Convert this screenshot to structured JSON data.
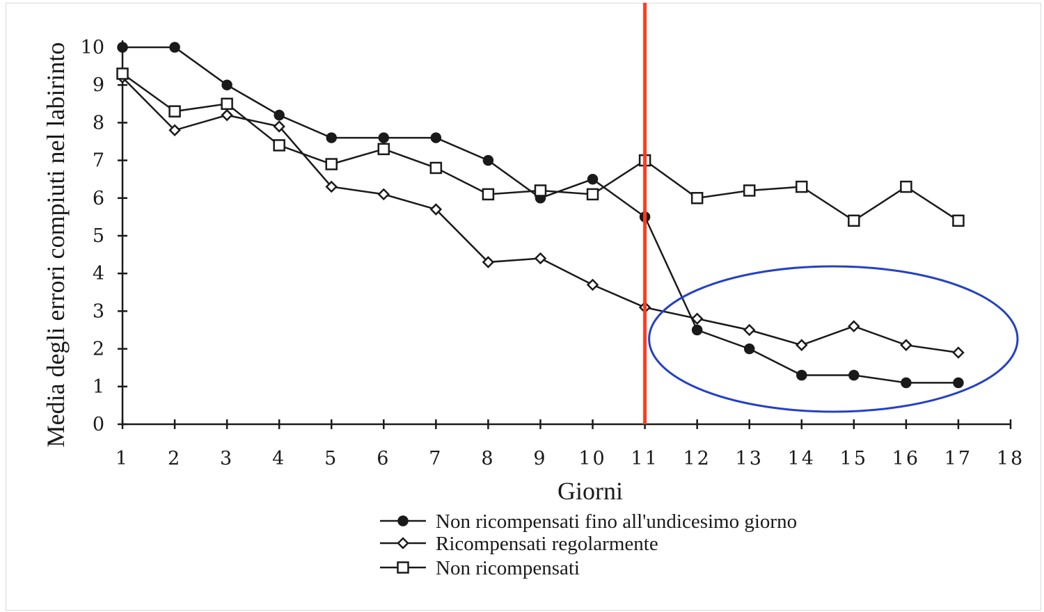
{
  "chart_data": {
    "type": "line",
    "title": "",
    "xlabel": "Giorni",
    "ylabel": "Media degli errori compiuti nel labirinto",
    "xlim": [
      1,
      18
    ],
    "ylim": [
      0,
      10
    ],
    "x_ticks": [
      1,
      2,
      3,
      4,
      5,
      6,
      7,
      8,
      9,
      10,
      11,
      12,
      13,
      14,
      15,
      16,
      17,
      18
    ],
    "y_ticks": [
      0,
      1,
      2,
      3,
      4,
      5,
      6,
      7,
      8,
      9,
      10
    ],
    "grid": false,
    "legend_position": "bottom",
    "series": [
      {
        "name": "Non ricompensati fino all'undicesimo giorno",
        "marker": "filled-circle",
        "x": [
          1,
          2,
          3,
          4,
          5,
          6,
          7,
          8,
          9,
          10,
          11,
          12,
          13,
          14,
          15,
          16,
          17
        ],
        "values": [
          10,
          10,
          9.0,
          8.2,
          7.6,
          7.6,
          7.6,
          7.0,
          6.0,
          6.5,
          5.5,
          2.5,
          2.0,
          1.3,
          1.3,
          1.1,
          1.1
        ]
      },
      {
        "name": "Ricompensati regolarmente",
        "marker": "open-diamond",
        "x": [
          1,
          2,
          3,
          4,
          5,
          6,
          7,
          8,
          9,
          10,
          11,
          12,
          13,
          14,
          15,
          16,
          17
        ],
        "values": [
          9.2,
          7.8,
          8.2,
          7.9,
          6.3,
          6.1,
          5.7,
          4.3,
          4.4,
          3.7,
          3.1,
          2.8,
          2.5,
          2.1,
          2.6,
          2.1,
          1.9
        ]
      },
      {
        "name": "Non ricompensati",
        "marker": "open-square",
        "x": [
          1,
          2,
          3,
          4,
          5,
          6,
          7,
          8,
          9,
          10,
          11,
          12,
          13,
          14,
          15,
          16,
          17
        ],
        "values": [
          9.3,
          8.3,
          8.5,
          7.4,
          6.9,
          7.3,
          6.8,
          6.1,
          6.2,
          6.1,
          7.0,
          6.0,
          6.2,
          6.3,
          5.4,
          6.3,
          5.4
        ]
      }
    ],
    "annotations": [
      {
        "type": "vertical-line",
        "x": 11,
        "color": "#ff3b1f"
      },
      {
        "type": "ellipse",
        "x_range": [
          11,
          18
        ],
        "y_range": [
          0,
          4.3
        ],
        "color": "#2340c8"
      }
    ]
  }
}
